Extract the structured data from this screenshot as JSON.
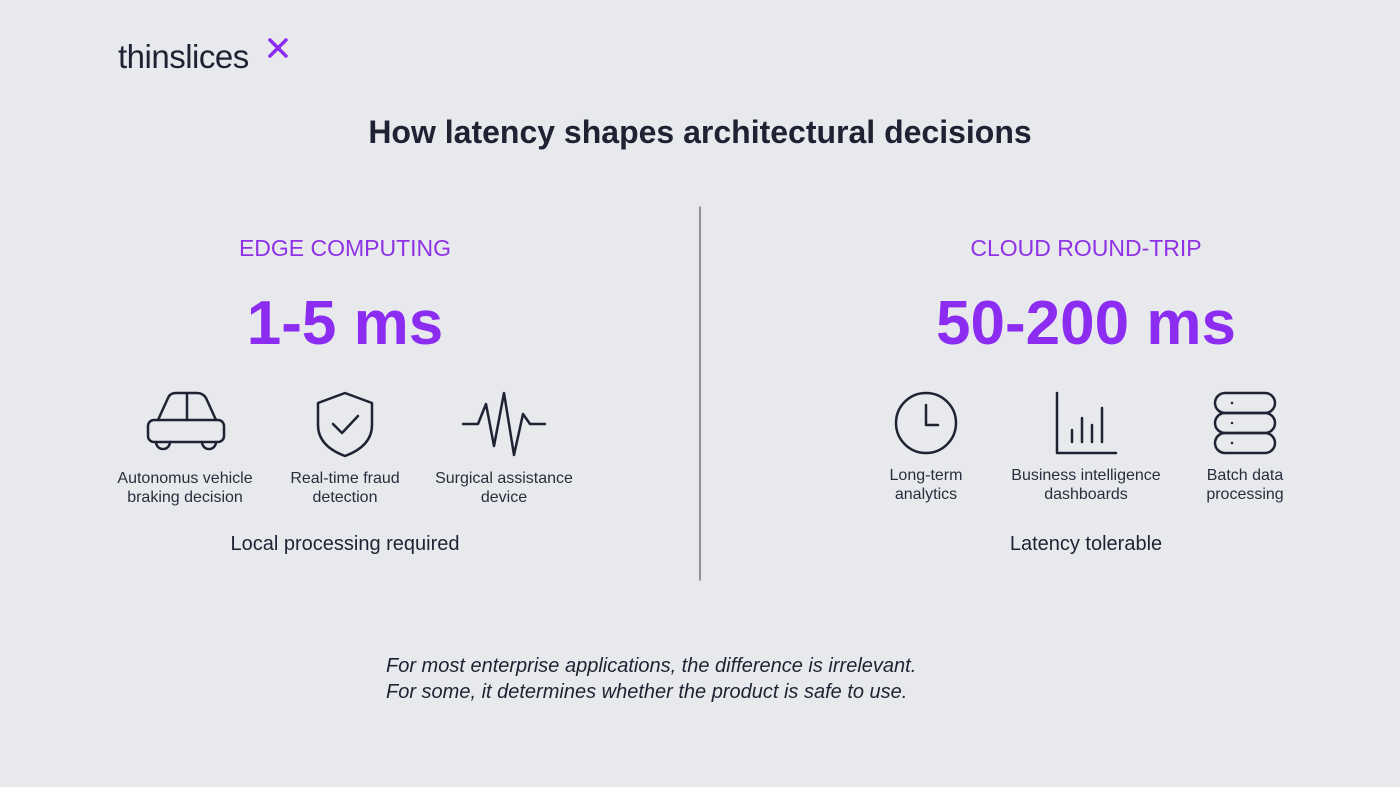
{
  "logo": "thinslices",
  "title": "How latency shapes architectural decisions",
  "columns": [
    {
      "heading": "EDGE COMPUTING",
      "value": "1-5 ms",
      "items": [
        {
          "lines": [
            "Autonomus vehicle",
            "braking decision"
          ]
        },
        {
          "lines": [
            "Real-time fraud",
            "detection"
          ]
        },
        {
          "lines": [
            "Surgical assistance",
            "device"
          ]
        }
      ],
      "footer": "Local processing required"
    },
    {
      "heading": "CLOUD ROUND-TRIP",
      "value": "50-200 ms",
      "items": [
        {
          "lines": [
            "Long-term",
            "analytics"
          ]
        },
        {
          "lines": [
            "Business intelligence",
            "dashboards"
          ]
        },
        {
          "lines": [
            "Batch data",
            "processing"
          ]
        }
      ],
      "footer": "Latency tolerable"
    }
  ],
  "note": {
    "lines": [
      "For most enterprise applications, the difference is irrelevant.",
      "For some, it determines whether the product is safe to use."
    ]
  }
}
